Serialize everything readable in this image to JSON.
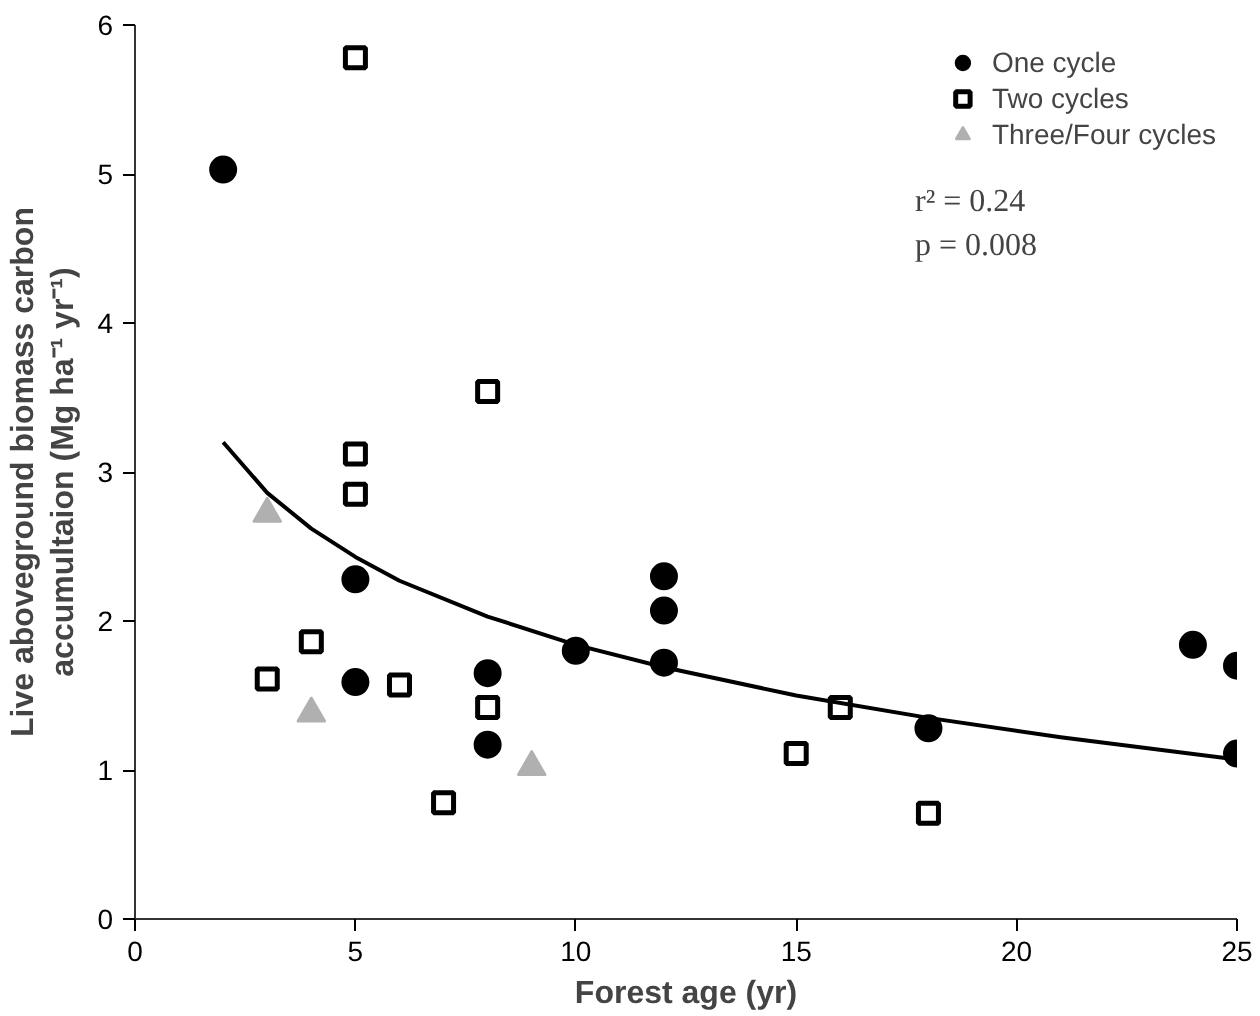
{
  "chart_data": {
    "type": "scatter",
    "xlabel": "Forest age (yr)",
    "ylabel": "Live aboveground biomass carbon accumultaion (Mg ha⁻¹ yr⁻¹)",
    "xlim": [
      0,
      25
    ],
    "ylim": [
      0,
      6
    ],
    "xticks": [
      0,
      5,
      10,
      15,
      20,
      25
    ],
    "yticks": [
      0,
      1,
      2,
      3,
      4,
      5,
      6
    ],
    "grid": false,
    "legend": "top right",
    "annotations": [
      "r² = 0.24",
      "p = 0.008"
    ],
    "series": [
      {
        "name": "One cycle",
        "color": "#000000",
        "marker": "circle",
        "x": [
          2,
          5,
          5,
          8,
          8,
          10,
          12,
          12,
          12,
          18,
          24,
          25,
          25
        ],
        "values": [
          5.03,
          2.28,
          1.59,
          1.65,
          1.17,
          1.8,
          2.3,
          2.07,
          1.72,
          1.28,
          1.84,
          1.7,
          1.11
        ]
      },
      {
        "name": "Two cycles",
        "color": "#000000",
        "marker": "square",
        "x": [
          5,
          8,
          5,
          5,
          4,
          3,
          6,
          8,
          7,
          15,
          16,
          18
        ],
        "values": [
          5.78,
          3.54,
          3.12,
          2.85,
          1.86,
          1.61,
          1.57,
          1.42,
          0.78,
          1.11,
          1.42,
          0.71
        ]
      },
      {
        "name": "Three/Four cycles",
        "color": "#b0b0b0",
        "marker": "triangle",
        "x": [
          3,
          4,
          9
        ],
        "values": [
          2.72,
          1.38,
          1.02
        ]
      },
      {
        "type": "line",
        "color": "#000000",
        "x": [
          2,
          3,
          4,
          5,
          6,
          8,
          10,
          12,
          15,
          18,
          21,
          25
        ],
        "values": [
          3.2,
          2.86,
          2.62,
          2.43,
          2.27,
          2.03,
          1.84,
          1.69,
          1.5,
          1.35,
          1.22,
          1.07
        ]
      }
    ]
  }
}
